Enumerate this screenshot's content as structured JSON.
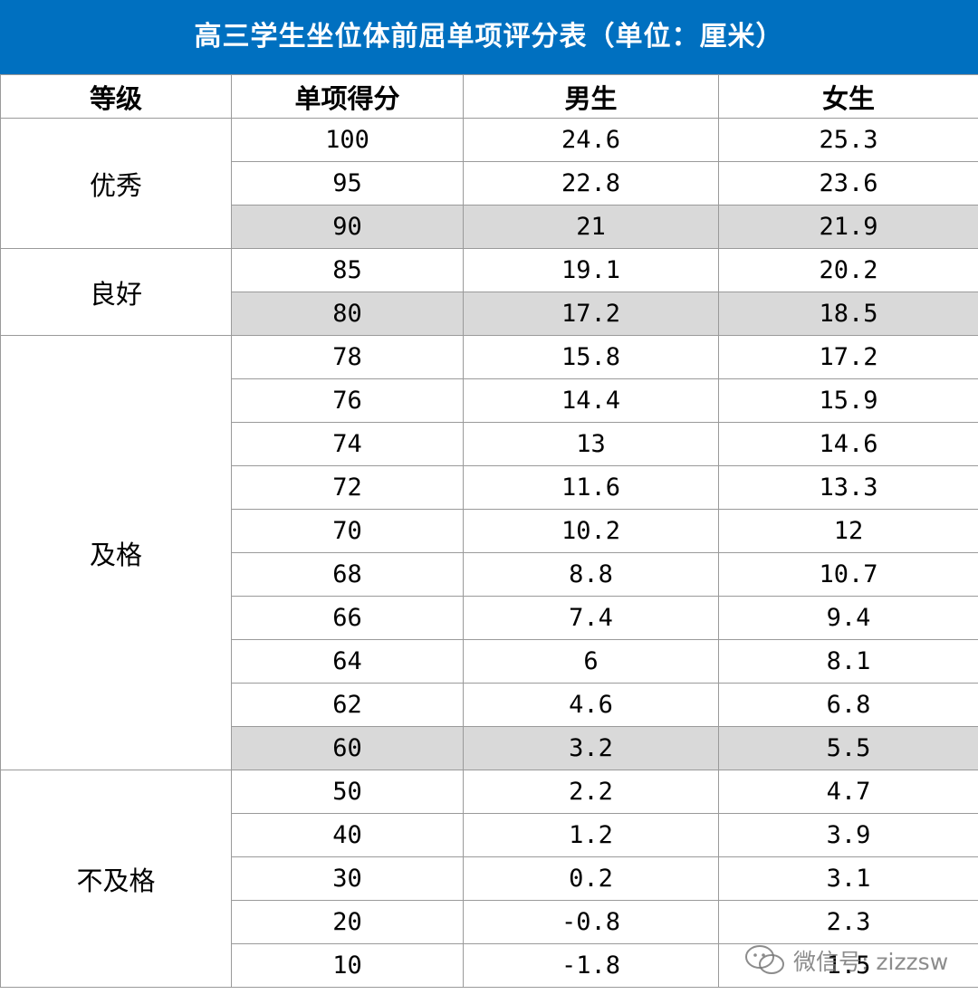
{
  "title": "高三学生坐位体前屈单项评分表（单位：厘米）",
  "headers": {
    "grade": "等级",
    "score": "单项得分",
    "male": "男生",
    "female": "女生"
  },
  "groups": [
    {
      "grade": "优秀",
      "rows": [
        {
          "score": "100",
          "male": "24.6",
          "female": "25.3",
          "shaded": false
        },
        {
          "score": "95",
          "male": "22.8",
          "female": "23.6",
          "shaded": false
        },
        {
          "score": "90",
          "male": "21",
          "female": "21.9",
          "shaded": true
        }
      ]
    },
    {
      "grade": "良好",
      "rows": [
        {
          "score": "85",
          "male": "19.1",
          "female": "20.2",
          "shaded": false
        },
        {
          "score": "80",
          "male": "17.2",
          "female": "18.5",
          "shaded": true
        }
      ]
    },
    {
      "grade": "及格",
      "rows": [
        {
          "score": "78",
          "male": "15.8",
          "female": "17.2",
          "shaded": false
        },
        {
          "score": "76",
          "male": "14.4",
          "female": "15.9",
          "shaded": false
        },
        {
          "score": "74",
          "male": "13",
          "female": "14.6",
          "shaded": false
        },
        {
          "score": "72",
          "male": "11.6",
          "female": "13.3",
          "shaded": false
        },
        {
          "score": "70",
          "male": "10.2",
          "female": "12",
          "shaded": false
        },
        {
          "score": "68",
          "male": "8.8",
          "female": "10.7",
          "shaded": false
        },
        {
          "score": "66",
          "male": "7.4",
          "female": "9.4",
          "shaded": false
        },
        {
          "score": "64",
          "male": "6",
          "female": "8.1",
          "shaded": false
        },
        {
          "score": "62",
          "male": "4.6",
          "female": "6.8",
          "shaded": false
        },
        {
          "score": "60",
          "male": "3.2",
          "female": "5.5",
          "shaded": true
        }
      ]
    },
    {
      "grade": "不及格",
      "rows": [
        {
          "score": "50",
          "male": "2.2",
          "female": "4.7",
          "shaded": false
        },
        {
          "score": "40",
          "male": "1.2",
          "female": "3.9",
          "shaded": false
        },
        {
          "score": "30",
          "male": "0.2",
          "female": "3.1",
          "shaded": false
        },
        {
          "score": "20",
          "male": "-0.8",
          "female": "2.3",
          "shaded": false
        },
        {
          "score": "10",
          "male": "-1.8",
          "female": "1.5",
          "shaded": false
        }
      ]
    }
  ],
  "watermark": {
    "text": "微信号: zizzsw",
    "icon": "wechat-icon"
  }
}
